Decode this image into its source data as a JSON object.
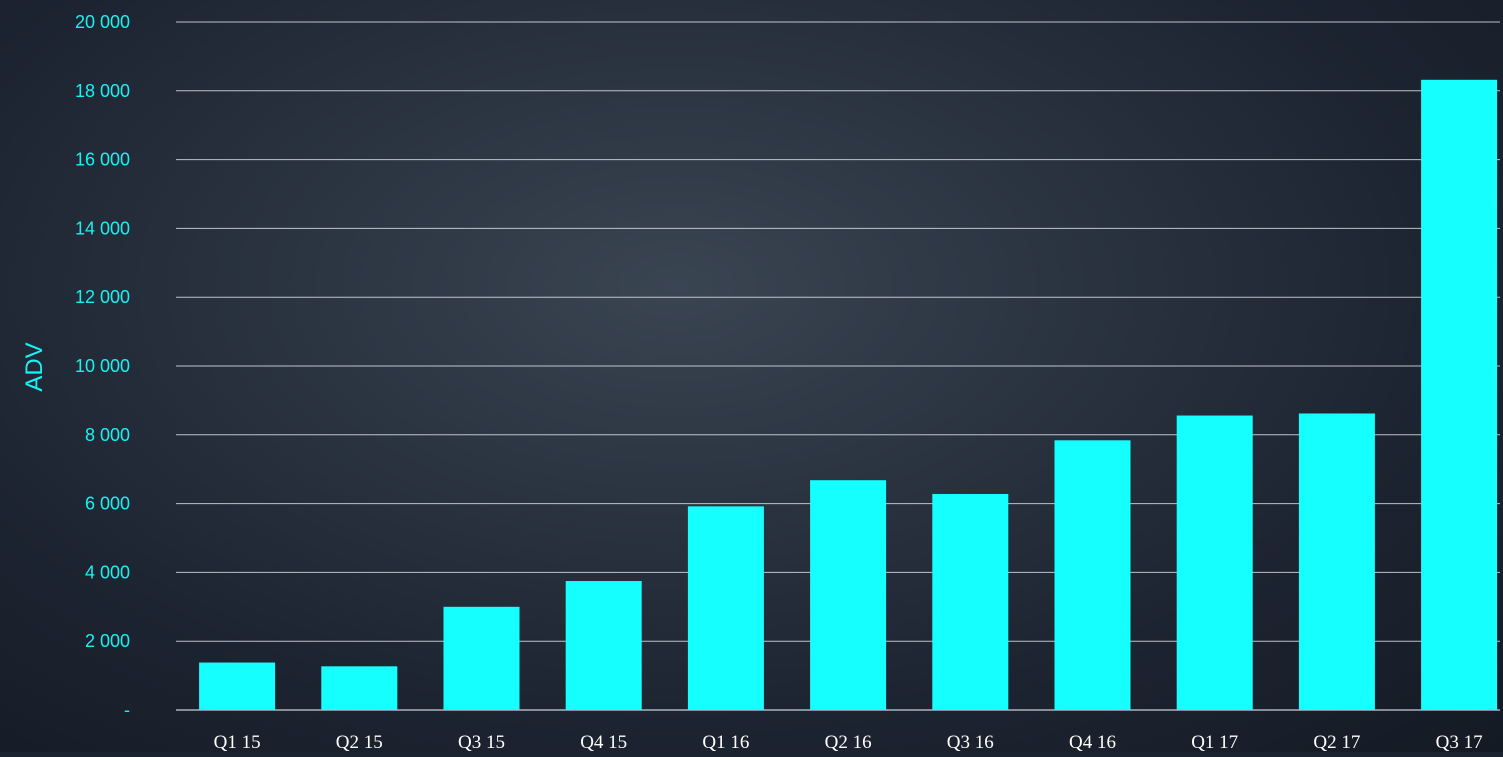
{
  "colors": {
    "bar": "#16ffff",
    "axis_text": "#17f3f3",
    "x_tick_text": "#ffffff",
    "gridline": "#d7dee6",
    "baseline": "#c8d0d8"
  },
  "chart_data": {
    "type": "bar",
    "title": "",
    "xlabel": "",
    "ylabel": "ADV",
    "categories": [
      "Q1 15",
      "Q2 15",
      "Q3 15",
      "Q4 15",
      "Q1 16",
      "Q2 16",
      "Q3 16",
      "Q4 16",
      "Q1 17",
      "Q2 17",
      "Q3 17"
    ],
    "values": [
      1380,
      1270,
      3000,
      3750,
      5920,
      6680,
      6280,
      7840,
      8560,
      8620,
      18320
    ],
    "ylim": [
      0,
      20000
    ],
    "y_ticks": [
      {
        "value": 0,
        "label": "-"
      },
      {
        "value": 2000,
        "label": "2 000"
      },
      {
        "value": 4000,
        "label": "4 000"
      },
      {
        "value": 6000,
        "label": "6 000"
      },
      {
        "value": 8000,
        "label": "8 000"
      },
      {
        "value": 10000,
        "label": "10 000"
      },
      {
        "value": 12000,
        "label": "12 000"
      },
      {
        "value": 14000,
        "label": "14 000"
      },
      {
        "value": 16000,
        "label": "16 000"
      },
      {
        "value": 18000,
        "label": "18 000"
      },
      {
        "value": 20000,
        "label": "20 000"
      }
    ],
    "grid": true,
    "legend": "none"
  }
}
